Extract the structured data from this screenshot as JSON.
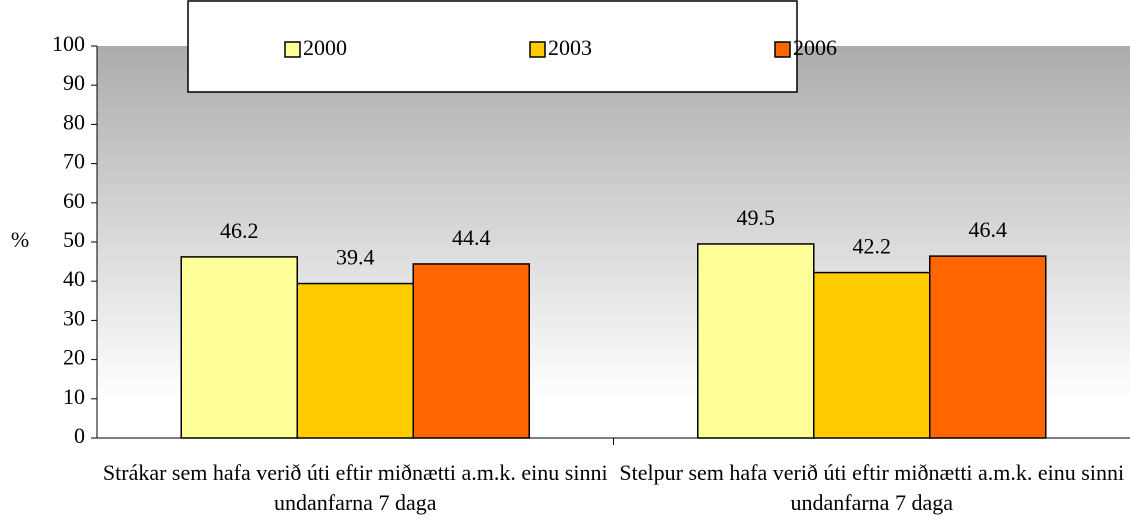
{
  "chart_data": {
    "type": "bar",
    "categories": [
      "Strákar sem hafa verið úti eftir miðnætti a.m.k. einu sinni undanfarna 7 daga",
      "Stelpur sem hafa verið úti eftir miðnætti a.m.k. einu sinni undanfarna 7 daga"
    ],
    "series": [
      {
        "name": "2000",
        "color": "#ffff99",
        "values": [
          46.2,
          49.5
        ]
      },
      {
        "name": "2003",
        "color": "#ffcc00",
        "values": [
          39.4,
          42.2
        ]
      },
      {
        "name": "2006",
        "color": "#ff6600",
        "values": [
          44.4,
          46.4
        ]
      }
    ],
    "y_label": "%",
    "ylim": [
      0,
      100
    ],
    "yticks": [
      0,
      10,
      20,
      30,
      40,
      50,
      60,
      70,
      80,
      90,
      100
    ],
    "legend": "top"
  }
}
